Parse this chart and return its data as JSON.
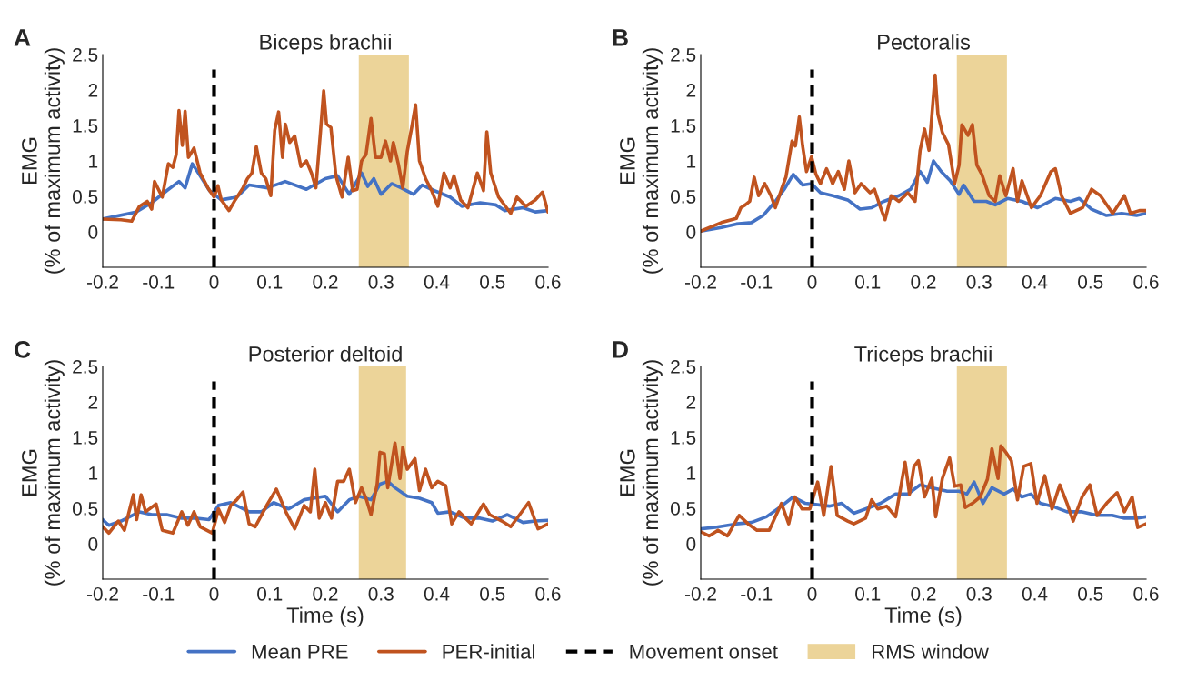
{
  "chart_data": [
    {
      "type": "line",
      "title": "Biceps brachii",
      "ylabel": "EMG\n(% of maximum activity)",
      "annotations": [
        "A"
      ],
      "xlim": [
        -0.2,
        0.6
      ],
      "xticks": [
        -0.2,
        -0.1,
        0,
        0.1,
        0.2,
        0.3,
        0.4,
        0.5,
        0.6
      ],
      "ylim": [
        -0.5,
        2.5
      ],
      "yticks": [
        0,
        0.5,
        1,
        1.5,
        2,
        2.5
      ],
      "grid": false,
      "line_style": "solid",
      "marker": "none",
      "legend": "bottom",
      "ref_lines": [
        {
          "axis": "x",
          "value": 0,
          "color": "#000000",
          "line_style": "dashed",
          "label": "Movement onset"
        }
      ],
      "bands": [
        {
          "axis": "x",
          "from": 0.26,
          "to": 0.35,
          "color": "#ecd499",
          "label": "RMS window"
        }
      ],
      "series": [
        {
          "name": "Mean PRE",
          "color": "#4472c4",
          "x": [
            -0.2,
            -0.14,
            -0.112,
            -0.085,
            -0.063,
            -0.052,
            -0.039,
            -0.025,
            -0.008,
            0.013,
            0.041,
            0.063,
            0.096,
            0.128,
            0.166,
            0.2,
            0.222,
            0.243,
            0.265,
            0.276,
            0.287,
            0.3,
            0.319,
            0.336,
            0.358,
            0.374,
            0.396,
            0.424,
            0.445,
            0.478,
            0.506,
            0.522,
            0.555,
            0.577,
            0.6
          ],
          "values": [
            0.18,
            0.28,
            0.41,
            0.58,
            0.71,
            0.62,
            0.96,
            0.79,
            0.58,
            0.45,
            0.49,
            0.66,
            0.62,
            0.71,
            0.6,
            0.75,
            0.79,
            0.53,
            0.83,
            0.64,
            0.75,
            0.53,
            0.68,
            0.62,
            0.53,
            0.66,
            0.58,
            0.49,
            0.36,
            0.41,
            0.38,
            0.3,
            0.34,
            0.28,
            0.3
          ]
        },
        {
          "name": "PER-initial",
          "color": "#c0531f",
          "x": [
            -0.2,
            -0.167,
            -0.148,
            -0.134,
            -0.12,
            -0.112,
            -0.107,
            -0.093,
            -0.082,
            -0.074,
            -0.068,
            -0.063,
            -0.057,
            -0.052,
            -0.046,
            -0.036,
            -0.025,
            -0.011,
            0.0,
            0.007,
            0.013,
            0.027,
            0.038,
            0.052,
            0.06,
            0.068,
            0.076,
            0.085,
            0.093,
            0.102,
            0.109,
            0.116,
            0.123,
            0.128,
            0.136,
            0.145,
            0.156,
            0.166,
            0.175,
            0.183,
            0.191,
            0.197,
            0.202,
            0.21,
            0.219,
            0.23,
            0.241,
            0.249,
            0.257,
            0.265,
            0.273,
            0.282,
            0.29,
            0.3,
            0.308,
            0.317,
            0.322,
            0.331,
            0.339,
            0.347,
            0.355,
            0.362,
            0.369,
            0.38,
            0.391,
            0.402,
            0.413,
            0.424,
            0.431,
            0.443,
            0.456,
            0.473,
            0.484,
            0.49,
            0.497,
            0.511,
            0.533,
            0.544,
            0.56,
            0.577,
            0.59,
            0.6
          ],
          "values": [
            0.18,
            0.17,
            0.15,
            0.36,
            0.43,
            0.32,
            0.71,
            0.49,
            0.96,
            0.91,
            1.09,
            1.71,
            1.22,
            1.7,
            1.05,
            1.18,
            0.83,
            0.62,
            0.49,
            0.65,
            0.45,
            0.3,
            0.45,
            0.62,
            0.75,
            0.83,
            1.2,
            0.83,
            0.75,
            0.51,
            1.43,
            1.69,
            1.05,
            1.52,
            1.26,
            1.35,
            0.92,
            1.0,
            0.83,
            0.62,
            1.39,
            1.99,
            1.52,
            1.47,
            0.79,
            0.49,
            1.05,
            0.58,
            0.6,
            1.0,
            1.09,
            1.6,
            1.05,
            1.05,
            1.28,
            1.0,
            1.26,
            0.96,
            0.62,
            1.13,
            1.47,
            1.79,
            1.0,
            0.75,
            0.58,
            0.36,
            0.83,
            0.62,
            0.79,
            0.45,
            0.34,
            0.83,
            0.58,
            1.41,
            0.83,
            0.49,
            0.26,
            0.49,
            0.36,
            0.45,
            0.56,
            0.28
          ]
        }
      ]
    },
    {
      "type": "line",
      "title": "Pectoralis",
      "ylabel": "EMG\n(% of maximum activity)",
      "annotations": [
        "B"
      ],
      "xlim": [
        -0.2,
        0.6
      ],
      "xticks": [
        -0.2,
        -0.1,
        0,
        0.1,
        0.2,
        0.3,
        0.4,
        0.5,
        0.6
      ],
      "ylim": [
        -0.5,
        2.5
      ],
      "yticks": [
        0,
        0.5,
        1,
        1.5,
        2,
        2.5
      ],
      "grid": false,
      "line_style": "solid",
      "marker": "none",
      "ref_lines": [
        {
          "axis": "x",
          "value": 0,
          "color": "#000000",
          "line_style": "dashed"
        }
      ],
      "bands": [
        {
          "axis": "x",
          "from": 0.26,
          "to": 0.35,
          "color": "#ecd499"
        }
      ],
      "series": [
        {
          "name": "Mean PRE",
          "color": "#4472c4",
          "x": [
            -0.2,
            -0.163,
            -0.136,
            -0.109,
            -0.088,
            -0.066,
            -0.05,
            -0.034,
            -0.017,
            -0.001,
            0.015,
            0.037,
            0.064,
            0.086,
            0.107,
            0.129,
            0.156,
            0.177,
            0.194,
            0.207,
            0.218,
            0.232,
            0.248,
            0.264,
            0.272,
            0.291,
            0.313,
            0.329,
            0.351,
            0.377,
            0.405,
            0.437,
            0.464,
            0.48,
            0.502,
            0.529,
            0.556,
            0.583,
            0.6
          ],
          "values": [
            0.01,
            0.06,
            0.11,
            0.13,
            0.23,
            0.43,
            0.6,
            0.81,
            0.66,
            0.68,
            0.55,
            0.51,
            0.45,
            0.32,
            0.34,
            0.43,
            0.51,
            0.6,
            0.85,
            0.7,
            1.0,
            0.85,
            0.72,
            0.53,
            0.66,
            0.43,
            0.43,
            0.38,
            0.47,
            0.43,
            0.34,
            0.47,
            0.43,
            0.47,
            0.32,
            0.23,
            0.26,
            0.23,
            0.26
          ]
        },
        {
          "name": "PER-initial",
          "color": "#c0531f",
          "x": [
            -0.2,
            -0.163,
            -0.136,
            -0.128,
            -0.12,
            -0.112,
            -0.104,
            -0.096,
            -0.085,
            -0.074,
            -0.066,
            -0.055,
            -0.047,
            -0.036,
            -0.03,
            -0.023,
            -0.017,
            -0.01,
            -0.001,
            0.007,
            0.015,
            0.026,
            0.037,
            0.047,
            0.058,
            0.066,
            0.077,
            0.088,
            0.104,
            0.112,
            0.123,
            0.131,
            0.142,
            0.156,
            0.172,
            0.185,
            0.194,
            0.202,
            0.21,
            0.221,
            0.226,
            0.234,
            0.245,
            0.256,
            0.264,
            0.269,
            0.28,
            0.288,
            0.296,
            0.305,
            0.318,
            0.329,
            0.337,
            0.348,
            0.361,
            0.369,
            0.377,
            0.394,
            0.41,
            0.429,
            0.437,
            0.448,
            0.464,
            0.486,
            0.502,
            0.518,
            0.54,
            0.561,
            0.572,
            0.588,
            0.6
          ],
          "values": [
            0.01,
            0.13,
            0.19,
            0.34,
            0.38,
            0.43,
            0.77,
            0.51,
            0.68,
            0.51,
            0.34,
            0.6,
            0.77,
            1.28,
            1.21,
            1.62,
            1.21,
            0.85,
            1.06,
            0.81,
            0.68,
            0.89,
            0.68,
            0.85,
            0.6,
            1.0,
            0.55,
            0.68,
            0.55,
            0.6,
            0.34,
            0.17,
            0.51,
            0.43,
            0.55,
            0.43,
            1.15,
            1.45,
            1.15,
            2.21,
            1.66,
            1.4,
            1.23,
            0.68,
            0.94,
            1.51,
            1.36,
            1.51,
            0.94,
            0.81,
            0.51,
            0.43,
            0.79,
            0.51,
            0.89,
            0.43,
            0.72,
            0.34,
            0.51,
            0.85,
            0.89,
            0.51,
            0.26,
            0.34,
            0.6,
            0.51,
            0.26,
            0.51,
            0.26,
            0.3,
            0.3
          ]
        }
      ]
    },
    {
      "type": "line",
      "title": "Posterior deltoid",
      "xlabel": "Time (s)",
      "ylabel": "EMG\n(% of maximum activity)",
      "annotations": [
        "C"
      ],
      "xlim": [
        -0.2,
        0.6
      ],
      "xticks": [
        -0.2,
        -0.1,
        0,
        0.1,
        0.2,
        0.3,
        0.4,
        0.5,
        0.6
      ],
      "ylim": [
        -0.5,
        2.5
      ],
      "yticks": [
        0,
        0.5,
        1,
        1.5,
        2,
        2.5
      ],
      "grid": false,
      "line_style": "solid",
      "marker": "none",
      "ref_lines": [
        {
          "axis": "x",
          "value": 0,
          "color": "#000000",
          "line_style": "dashed"
        }
      ],
      "bands": [
        {
          "axis": "x",
          "from": 0.26,
          "to": 0.345,
          "color": "#ecd499"
        }
      ],
      "series": [
        {
          "name": "Mean PRE",
          "color": "#4472c4",
          "x": [
            -0.2,
            -0.189,
            -0.167,
            -0.134,
            -0.112,
            -0.085,
            -0.058,
            -0.031,
            -0.009,
            0.008,
            0.03,
            0.063,
            0.085,
            0.107,
            0.134,
            0.162,
            0.2,
            0.222,
            0.243,
            0.26,
            0.282,
            0.298,
            0.312,
            0.325,
            0.347,
            0.369,
            0.391,
            0.402,
            0.424,
            0.451,
            0.478,
            0.5,
            0.527,
            0.555,
            0.577,
            0.6
          ],
          "values": [
            0.34,
            0.26,
            0.32,
            0.45,
            0.41,
            0.41,
            0.36,
            0.36,
            0.34,
            0.54,
            0.58,
            0.45,
            0.45,
            0.58,
            0.49,
            0.62,
            0.67,
            0.45,
            0.62,
            0.67,
            0.62,
            0.84,
            0.88,
            0.79,
            0.67,
            0.64,
            0.58,
            0.43,
            0.45,
            0.36,
            0.36,
            0.32,
            0.41,
            0.3,
            0.32,
            0.33
          ]
        },
        {
          "name": "PER-initial",
          "color": "#c0531f",
          "x": [
            -0.2,
            -0.189,
            -0.172,
            -0.161,
            -0.145,
            -0.139,
            -0.131,
            -0.123,
            -0.104,
            -0.093,
            -0.074,
            -0.058,
            -0.047,
            -0.036,
            -0.025,
            -0.003,
            0.008,
            0.019,
            0.03,
            0.041,
            0.052,
            0.063,
            0.074,
            0.096,
            0.112,
            0.129,
            0.145,
            0.162,
            0.173,
            0.181,
            0.189,
            0.2,
            0.211,
            0.222,
            0.233,
            0.243,
            0.254,
            0.265,
            0.273,
            0.282,
            0.293,
            0.298,
            0.306,
            0.312,
            0.325,
            0.334,
            0.339,
            0.347,
            0.361,
            0.369,
            0.38,
            0.391,
            0.402,
            0.416,
            0.427,
            0.44,
            0.462,
            0.484,
            0.495,
            0.517,
            0.533,
            0.549,
            0.565,
            0.582,
            0.6
          ],
          "values": [
            0.24,
            0.15,
            0.32,
            0.19,
            0.69,
            0.34,
            0.69,
            0.45,
            0.56,
            0.19,
            0.15,
            0.45,
            0.26,
            0.45,
            0.24,
            0.15,
            0.49,
            0.3,
            0.54,
            0.62,
            0.73,
            0.28,
            0.24,
            0.56,
            0.77,
            0.45,
            0.21,
            0.54,
            0.45,
            1.05,
            0.36,
            0.58,
            0.36,
            0.88,
            0.88,
            1.05,
            0.58,
            0.79,
            0.64,
            0.41,
            0.84,
            1.29,
            1.27,
            0.79,
            1.42,
            0.92,
            1.36,
            1.05,
            1.2,
            0.75,
            1.05,
            0.79,
            0.88,
            0.82,
            0.28,
            0.45,
            0.28,
            0.56,
            0.41,
            0.32,
            0.24,
            0.41,
            0.58,
            0.21,
            0.28
          ]
        }
      ]
    },
    {
      "type": "line",
      "title": "Triceps brachii",
      "xlabel": "Time (s)",
      "ylabel": "EMG\n(% of maximum activity)",
      "annotations": [
        "D"
      ],
      "xlim": [
        -0.2,
        0.6
      ],
      "xticks": [
        -0.2,
        -0.1,
        0,
        0.1,
        0.2,
        0.3,
        0.4,
        0.5,
        0.6
      ],
      "ylim": [
        -0.5,
        2.5
      ],
      "yticks": [
        0,
        0.5,
        1,
        1.5,
        2,
        2.5
      ],
      "grid": false,
      "line_style": "solid",
      "marker": "none",
      "ref_lines": [
        {
          "axis": "x",
          "value": 0,
          "color": "#000000",
          "line_style": "dashed"
        }
      ],
      "bands": [
        {
          "axis": "x",
          "from": 0.26,
          "to": 0.35,
          "color": "#ecd499"
        }
      ],
      "series": [
        {
          "name": "Mean PRE",
          "color": "#4472c4",
          "x": [
            -0.2,
            -0.174,
            -0.136,
            -0.109,
            -0.082,
            -0.055,
            -0.034,
            -0.012,
            0.01,
            0.031,
            0.053,
            0.075,
            0.096,
            0.123,
            0.15,
            0.172,
            0.194,
            0.215,
            0.243,
            0.264,
            0.278,
            0.291,
            0.307,
            0.323,
            0.345,
            0.361,
            0.377,
            0.393,
            0.41,
            0.431,
            0.458,
            0.485,
            0.512,
            0.539,
            0.561,
            0.583,
            0.6
          ],
          "values": [
            0.21,
            0.23,
            0.28,
            0.3,
            0.38,
            0.53,
            0.66,
            0.57,
            0.55,
            0.53,
            0.57,
            0.43,
            0.49,
            0.57,
            0.7,
            0.7,
            0.83,
            0.79,
            0.74,
            0.74,
            0.7,
            0.87,
            0.57,
            0.79,
            0.7,
            0.77,
            0.66,
            0.7,
            0.57,
            0.53,
            0.45,
            0.45,
            0.4,
            0.4,
            0.36,
            0.36,
            0.38
          ]
        },
        {
          "name": "PER-initial",
          "color": "#c0531f",
          "x": [
            -0.2,
            -0.185,
            -0.169,
            -0.152,
            -0.131,
            -0.115,
            -0.099,
            -0.077,
            -0.055,
            -0.042,
            -0.031,
            -0.018,
            -0.004,
            0.01,
            0.021,
            0.034,
            0.045,
            0.064,
            0.075,
            0.096,
            0.107,
            0.118,
            0.134,
            0.15,
            0.167,
            0.175,
            0.183,
            0.191,
            0.202,
            0.215,
            0.222,
            0.234,
            0.247,
            0.256,
            0.267,
            0.275,
            0.288,
            0.302,
            0.315,
            0.323,
            0.334,
            0.339,
            0.349,
            0.358,
            0.369,
            0.38,
            0.393,
            0.404,
            0.418,
            0.431,
            0.445,
            0.458,
            0.469,
            0.485,
            0.499,
            0.512,
            0.529,
            0.548,
            0.561,
            0.575,
            0.585,
            0.6
          ],
          "values": [
            0.17,
            0.11,
            0.19,
            0.11,
            0.4,
            0.28,
            0.19,
            0.19,
            0.57,
            0.28,
            0.66,
            0.49,
            0.49,
            0.87,
            0.4,
            1.09,
            0.4,
            0.32,
            0.28,
            0.36,
            0.62,
            0.49,
            0.53,
            0.38,
            1.15,
            0.7,
            1.09,
            1.17,
            0.66,
            0.92,
            0.38,
            0.92,
            1.21,
            0.81,
            0.83,
            0.51,
            0.57,
            0.66,
            0.91,
            1.34,
            0.92,
            1.38,
            1.28,
            1.17,
            0.62,
            1.09,
            1.13,
            0.57,
            0.96,
            0.49,
            0.83,
            0.57,
            0.32,
            0.66,
            0.83,
            0.4,
            0.57,
            0.72,
            0.45,
            0.66,
            0.23,
            0.28
          ]
        }
      ]
    }
  ]
}
